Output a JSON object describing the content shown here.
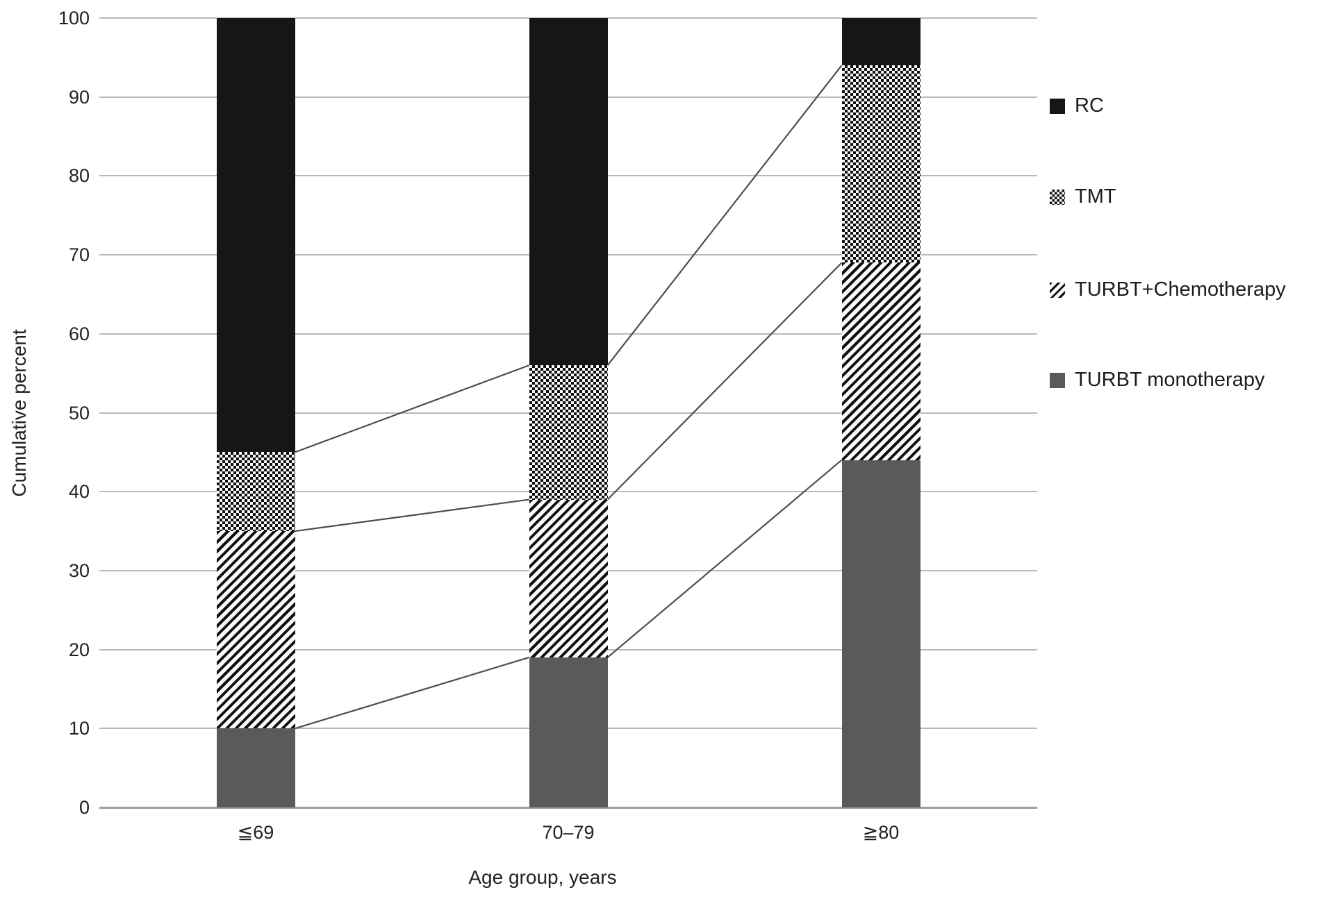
{
  "chart_data": {
    "type": "bar",
    "stacked": true,
    "title": "",
    "xlabel": "Age group, years",
    "ylabel": "Cumulative percent",
    "categories": [
      "≦69",
      "70–79",
      "≧80"
    ],
    "series": [
      {
        "name": "TURBT monotherapy",
        "pattern": "solid-gray",
        "values": [
          10,
          19,
          44
        ]
      },
      {
        "name": "TURBT+Chemotherapy",
        "pattern": "hatch",
        "values": [
          25,
          20,
          25
        ]
      },
      {
        "name": "TMT",
        "pattern": "checker",
        "values": [
          10,
          17,
          25
        ]
      },
      {
        "name": "RC",
        "pattern": "solid-black",
        "values": [
          55,
          44,
          6
        ]
      }
    ],
    "ylim": [
      0,
      100
    ],
    "yticks": [
      0,
      10,
      20,
      30,
      40,
      50,
      60,
      70,
      80,
      90,
      100
    ],
    "grid": true,
    "connector_lines_between_stack_boundaries": true,
    "legend": {
      "position": "right",
      "items": [
        {
          "label": "RC",
          "pattern": "solid-black"
        },
        {
          "label": "TMT",
          "pattern": "checker"
        },
        {
          "label": "TURBT+Chemotherapy",
          "pattern": "hatch"
        },
        {
          "label": "TURBT monotherapy",
          "pattern": "solid-gray"
        }
      ]
    }
  },
  "colors": {
    "bar_black": "#161616",
    "bar_gray": "#5a5a5a",
    "gridline": "#b9b9b9",
    "axis_line": "#9e9e9e",
    "connector": "#4d4d4d",
    "text": "#1f1f1f"
  }
}
